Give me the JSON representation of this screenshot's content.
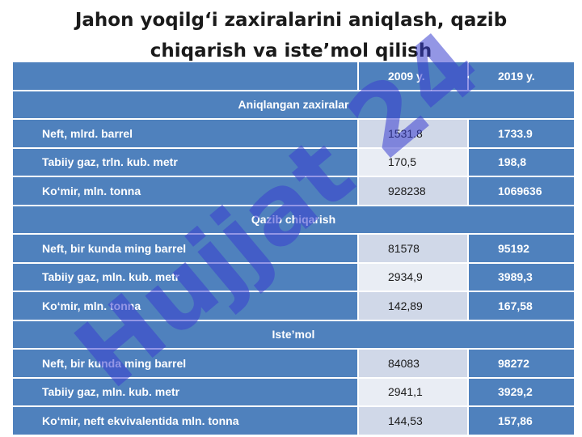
{
  "title": {
    "line1": "Jahon yoqilg‘i zaxiralarini aniqlash, qazib",
    "line2": "chiqarish va iste’mol qilish"
  },
  "table": {
    "headers": [
      "",
      "2009 y.",
      "2019 y."
    ],
    "sections": [
      {
        "title": "Aniqlangan zaxiralar",
        "rows": [
          {
            "label": "Neft, mlrd. barrel",
            "v2009": "1531.8",
            "v2019": "1733.9"
          },
          {
            "label": "Tabiiy gaz, trln. kub. metr",
            "v2009": "170,5",
            "v2019": "198,8"
          },
          {
            "label": "Ko‘mir, mln. tonna",
            "v2009": "928238",
            "v2019": "1069636"
          }
        ]
      },
      {
        "title": "Qazib chiqarish",
        "rows": [
          {
            "label": "Neft, bir kunda ming barrel",
            "v2009": "81578",
            "v2019": "95192"
          },
          {
            "label": "Tabiiy gaz, mln. kub. metr",
            "v2009": "2934,9",
            "v2019": "3989,3"
          },
          {
            "label": "Ko‘mir, mln. tonna",
            "v2009": "142,89",
            "v2019": "167,58"
          }
        ]
      },
      {
        "title": "Iste’mol",
        "rows": [
          {
            "label": "Neft, bir kunda ming barrel",
            "v2009": "84083",
            "v2019": "98272"
          },
          {
            "label": "Tabiiy gaz, mln. kub. metr",
            "v2009": "2941,1",
            "v2019": "3929,2"
          },
          {
            "label": "Ko‘mir, neft ekvivalentida mln. tonna",
            "v2009": "144,53",
            "v2019": "157,86"
          }
        ]
      }
    ]
  },
  "watermark": {
    "text": "Hujjat 24",
    "color": "#3a3fd0"
  }
}
